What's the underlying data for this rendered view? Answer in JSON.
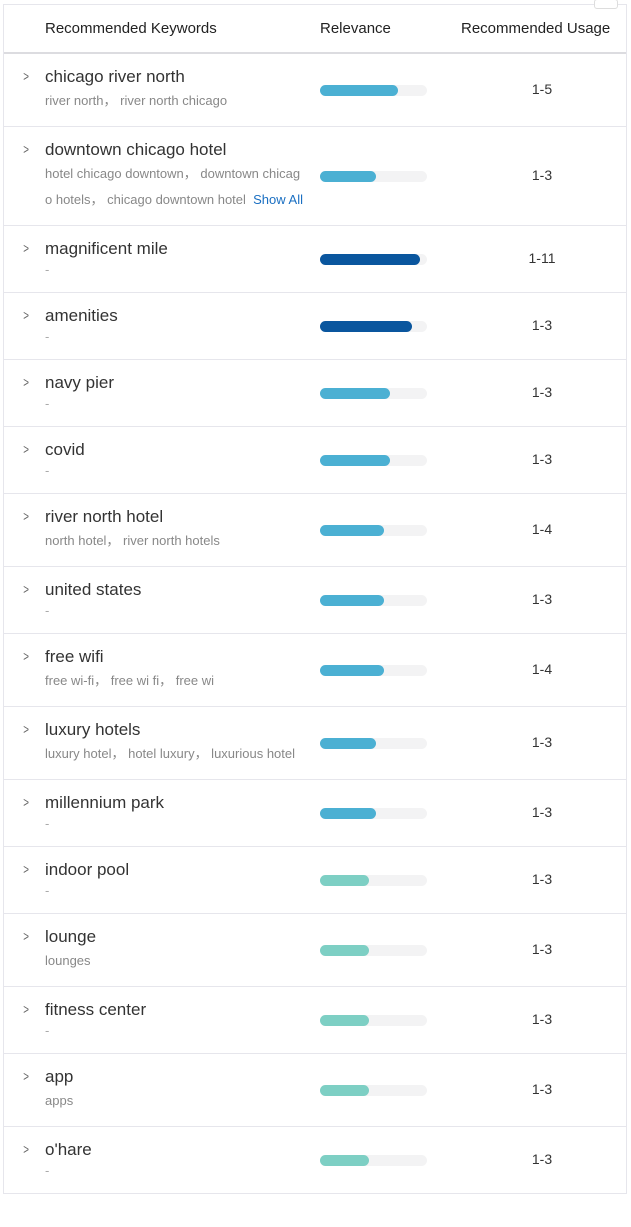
{
  "header": {
    "keywords": "Recommended Keywords",
    "relevance": "Relevance",
    "usage": "Recommended Usage"
  },
  "show_all": "Show All",
  "colors": {
    "high": "#0a569e",
    "medium": "#4bb0d3",
    "low": "#7dcfc4",
    "track": "#f3f3f4"
  },
  "rows": [
    {
      "keyword": "chicago river north",
      "variants": "river north， river north chicago",
      "relevance": 0.73,
      "level": "medium",
      "usage": "1-5"
    },
    {
      "keyword": "downtown chicago hotel",
      "variants": "hotel chicago downtown， downtown chicago hotels， chicago downtown hotel",
      "relevance": 0.52,
      "level": "medium",
      "usage": "1-3",
      "show_all": true
    },
    {
      "keyword": "magnificent mile",
      "variants": "-",
      "relevance": 0.93,
      "level": "high",
      "usage": "1-11"
    },
    {
      "keyword": "amenities",
      "variants": "-",
      "relevance": 0.86,
      "level": "high",
      "usage": "1-3"
    },
    {
      "keyword": "navy pier",
      "variants": "-",
      "relevance": 0.65,
      "level": "medium",
      "usage": "1-3"
    },
    {
      "keyword": "covid",
      "variants": "-",
      "relevance": 0.65,
      "level": "medium",
      "usage": "1-3"
    },
    {
      "keyword": "river north hotel",
      "variants": "north hotel， river north hotels",
      "relevance": 0.6,
      "level": "medium",
      "usage": "1-4"
    },
    {
      "keyword": "united states",
      "variants": "-",
      "relevance": 0.6,
      "level": "medium",
      "usage": "1-3"
    },
    {
      "keyword": "free wifi",
      "variants": "free wi-fi， free wi fi， free wi",
      "relevance": 0.6,
      "level": "medium",
      "usage": "1-4"
    },
    {
      "keyword": "luxury hotels",
      "variants": "luxury hotel， hotel luxury， luxurious hotel",
      "relevance": 0.52,
      "level": "medium",
      "usage": "1-3"
    },
    {
      "keyword": "millennium park",
      "variants": "-",
      "relevance": 0.52,
      "level": "medium",
      "usage": "1-3"
    },
    {
      "keyword": "indoor pool",
      "variants": "-",
      "relevance": 0.46,
      "level": "low",
      "usage": "1-3"
    },
    {
      "keyword": "lounge",
      "variants": "lounges",
      "relevance": 0.46,
      "level": "low",
      "usage": "1-3"
    },
    {
      "keyword": "fitness center",
      "variants": "-",
      "relevance": 0.46,
      "level": "low",
      "usage": "1-3"
    },
    {
      "keyword": "app",
      "variants": "apps",
      "relevance": 0.46,
      "level": "low",
      "usage": "1-3"
    },
    {
      "keyword": "o'hare",
      "variants": "-",
      "relevance": 0.46,
      "level": "low",
      "usage": "1-3"
    }
  ]
}
